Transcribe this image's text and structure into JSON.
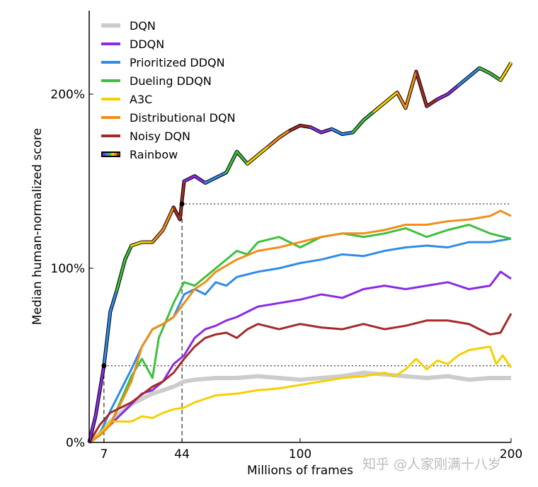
{
  "chart_data": {
    "type": "line",
    "xlabel": "Millions of frames",
    "ylabel": "Median human-normalized score",
    "xlim": [
      0,
      200
    ],
    "ylim": [
      0,
      245
    ],
    "xticks": [
      "7",
      "44",
      "100",
      "200"
    ],
    "xtick_values": [
      7,
      44,
      100,
      200
    ],
    "yticks": [
      "0%",
      "100%",
      "200%"
    ],
    "ytick_values": [
      0,
      100,
      200
    ],
    "grid": false,
    "legend_position": "top-left",
    "reference_lines": [
      {
        "style": "dotted",
        "orientation": "horizontal",
        "y": 44,
        "x_from": 7,
        "x_to": 200
      },
      {
        "style": "dotted",
        "orientation": "horizontal",
        "y": 137,
        "x_from": 44,
        "x_to": 200
      },
      {
        "style": "dashed",
        "orientation": "vertical",
        "x": 7,
        "y_to": 44
      },
      {
        "style": "dashed",
        "orientation": "vertical",
        "x": 44,
        "y_to": 137
      }
    ],
    "markers": [
      {
        "x": 7,
        "y": 44
      },
      {
        "x": 44,
        "y": 137
      }
    ],
    "series": [
      {
        "name": "DQN",
        "color": "#cccccc",
        "width": 6,
        "x": [
          0,
          5,
          10,
          20,
          30,
          35,
          40,
          45,
          50,
          60,
          70,
          80,
          90,
          100,
          110,
          120,
          130,
          140,
          150,
          160,
          170,
          180,
          190,
          200
        ],
        "y": [
          0,
          5,
          12,
          22,
          28,
          30,
          32,
          35,
          36,
          37,
          37,
          38,
          37,
          36,
          37,
          38,
          40,
          39,
          38,
          37,
          38,
          36,
          37,
          37
        ]
      },
      {
        "name": "DDQN",
        "color": "#8a2be2",
        "width": 3,
        "x": [
          0,
          5,
          10,
          20,
          25,
          30,
          35,
          40,
          45,
          50,
          55,
          60,
          65,
          70,
          75,
          80,
          90,
          100,
          110,
          120,
          130,
          140,
          150,
          160,
          170,
          180,
          190,
          195,
          200
        ],
        "y": [
          0,
          5,
          10,
          22,
          28,
          30,
          35,
          45,
          50,
          60,
          65,
          67,
          70,
          72,
          75,
          78,
          80,
          82,
          85,
          83,
          88,
          90,
          88,
          90,
          92,
          88,
          90,
          98,
          94
        ]
      },
      {
        "name": "Prioritized DDQN",
        "color": "#2f8ce8",
        "width": 3,
        "x": [
          0,
          5,
          10,
          20,
          25,
          30,
          35,
          40,
          45,
          50,
          55,
          60,
          65,
          70,
          80,
          90,
          100,
          110,
          120,
          130,
          140,
          150,
          160,
          170,
          180,
          190,
          200
        ],
        "y": [
          0,
          5,
          18,
          42,
          55,
          65,
          68,
          72,
          85,
          88,
          85,
          92,
          90,
          95,
          98,
          100,
          103,
          105,
          108,
          107,
          110,
          112,
          113,
          112,
          115,
          115,
          117
        ]
      },
      {
        "name": "Dueling DDQN",
        "color": "#3cc13c",
        "width": 3,
        "x": [
          0,
          5,
          10,
          20,
          25,
          30,
          33,
          40,
          45,
          50,
          55,
          60,
          70,
          75,
          80,
          90,
          100,
          110,
          120,
          130,
          140,
          150,
          160,
          170,
          180,
          190,
          200
        ],
        "y": [
          0,
          4,
          10,
          38,
          48,
          37,
          60,
          80,
          92,
          90,
          95,
          100,
          110,
          108,
          115,
          118,
          112,
          118,
          120,
          118,
          120,
          123,
          118,
          122,
          125,
          120,
          117
        ]
      },
      {
        "name": "A3C",
        "color": "#f5d000",
        "width": 3,
        "x": [
          0,
          5,
          10,
          20,
          25,
          30,
          35,
          40,
          45,
          50,
          55,
          60,
          70,
          80,
          90,
          100,
          110,
          120,
          130,
          140,
          145,
          150,
          155,
          160,
          165,
          170,
          175,
          180,
          185,
          190,
          193,
          196,
          200
        ],
        "y": [
          0,
          5,
          12,
          12,
          15,
          14,
          17,
          19,
          20,
          23,
          25,
          27,
          28,
          30,
          31,
          33,
          35,
          37,
          38,
          40,
          38,
          42,
          48,
          42,
          47,
          45,
          50,
          53,
          54,
          55,
          45,
          50,
          43
        ]
      },
      {
        "name": "Distributional DQN",
        "color": "#f28c18",
        "width": 3,
        "x": [
          0,
          5,
          10,
          20,
          25,
          30,
          35,
          40,
          45,
          50,
          55,
          60,
          70,
          80,
          90,
          100,
          110,
          120,
          130,
          140,
          150,
          160,
          170,
          180,
          190,
          195,
          200
        ],
        "y": [
          0,
          4,
          10,
          35,
          55,
          65,
          68,
          72,
          80,
          88,
          92,
          98,
          105,
          110,
          112,
          115,
          118,
          120,
          120,
          122,
          125,
          125,
          127,
          128,
          130,
          133,
          130
        ]
      },
      {
        "name": "Noisy DQN",
        "color": "#a52a2a",
        "width": 3,
        "x": [
          0,
          5,
          10,
          20,
          30,
          35,
          40,
          45,
          50,
          55,
          60,
          65,
          70,
          75,
          80,
          90,
          100,
          110,
          120,
          130,
          140,
          150,
          160,
          170,
          180,
          190,
          195,
          200
        ],
        "y": [
          0,
          10,
          17,
          23,
          32,
          35,
          40,
          48,
          55,
          60,
          62,
          63,
          60,
          65,
          68,
          65,
          68,
          66,
          65,
          68,
          65,
          67,
          70,
          70,
          68,
          62,
          63,
          74
        ]
      },
      {
        "name": "Rainbow",
        "color": "rainbow",
        "width": 3,
        "colors": [
          "#8a2be2",
          "#2f8ce8",
          "#3cc13c",
          "#f5d000",
          "#f28c18",
          "#a52a2a"
        ],
        "x": [
          0,
          3,
          7,
          10,
          13,
          17,
          20,
          25,
          30,
          35,
          40,
          43,
          45,
          50,
          55,
          60,
          65,
          70,
          75,
          80,
          85,
          90,
          95,
          100,
          105,
          110,
          115,
          120,
          125,
          130,
          135,
          140,
          146,
          150,
          155,
          160,
          165,
          170,
          175,
          180,
          185,
          190,
          195,
          200
        ],
        "y": [
          0,
          15,
          44,
          75,
          87,
          105,
          113,
          115,
          115,
          122,
          135,
          128,
          150,
          153,
          149,
          152,
          155,
          167,
          160,
          165,
          170,
          175,
          179,
          182,
          181,
          178,
          180,
          177,
          178,
          185,
          190,
          195,
          201,
          192,
          213,
          193,
          197,
          200,
          205,
          210,
          215,
          212,
          208,
          218
        ]
      }
    ]
  },
  "watermark": "知乎 @人家刚满十八岁"
}
